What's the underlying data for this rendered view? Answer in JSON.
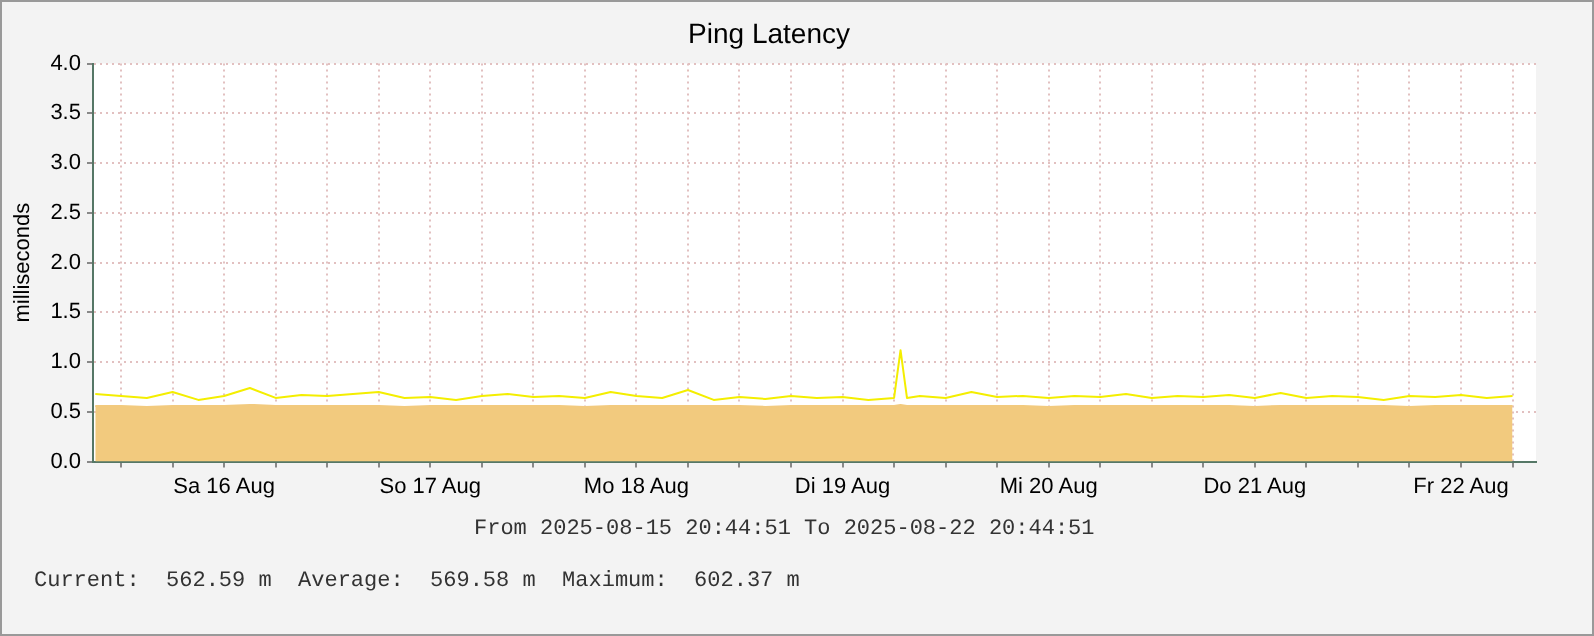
{
  "chart_data": {
    "type": "line",
    "title": "Ping Latency",
    "ylabel": "milliseconds",
    "annotations": [
      "From 2025-08-15 20:44:51 To 2025-08-22 20:44:51",
      "Current:  562.59 m  Average:  569.58 m  Maximum:  602.37 m"
    ],
    "x": [
      "2025-08-15T21:00",
      "2025-08-16T00:00",
      "2025-08-16T03:00",
      "2025-08-16T06:00",
      "2025-08-16T09:00",
      "2025-08-16T12:00",
      "2025-08-16T15:00",
      "2025-08-16T18:00",
      "2025-08-16T21:00",
      "2025-08-17T00:00",
      "2025-08-17T03:00",
      "2025-08-17T06:00",
      "2025-08-17T09:00",
      "2025-08-17T12:00",
      "2025-08-17T15:00",
      "2025-08-17T18:00",
      "2025-08-17T21:00",
      "2025-08-18T00:00",
      "2025-08-18T03:00",
      "2025-08-18T06:00",
      "2025-08-18T09:00",
      "2025-08-18T12:00",
      "2025-08-18T15:00",
      "2025-08-18T18:00",
      "2025-08-18T21:00",
      "2025-08-19T00:00",
      "2025-08-19T03:00",
      "2025-08-19T06:00",
      "2025-08-19T09:00",
      "2025-08-19T12:00",
      "2025-08-19T15:00",
      "2025-08-19T18:00",
      "2025-08-19T18:45",
      "2025-08-19T19:30",
      "2025-08-19T21:00",
      "2025-08-20T00:00",
      "2025-08-20T03:00",
      "2025-08-20T06:00",
      "2025-08-20T09:00",
      "2025-08-20T12:00",
      "2025-08-20T15:00",
      "2025-08-20T18:00",
      "2025-08-20T21:00",
      "2025-08-21T00:00",
      "2025-08-21T03:00",
      "2025-08-21T06:00",
      "2025-08-21T09:00",
      "2025-08-21T12:00",
      "2025-08-21T15:00",
      "2025-08-21T18:00",
      "2025-08-21T21:00",
      "2025-08-22T00:00",
      "2025-08-22T03:00",
      "2025-08-22T06:00",
      "2025-08-22T09:00",
      "2025-08-22T12:00",
      "2025-08-22T15:00",
      "2025-08-22T18:00"
    ],
    "series": [
      {
        "type": "area",
        "color": "#f2ca7e",
        "values": [
          0.56,
          0.56,
          0.55,
          0.56,
          0.56,
          0.56,
          0.57,
          0.56,
          0.56,
          0.56,
          0.56,
          0.56,
          0.55,
          0.56,
          0.56,
          0.56,
          0.56,
          0.56,
          0.56,
          0.55,
          0.56,
          0.56,
          0.56,
          0.56,
          0.56,
          0.56,
          0.55,
          0.56,
          0.56,
          0.56,
          0.56,
          0.56,
          0.57,
          0.56,
          0.56,
          0.56,
          0.56,
          0.56,
          0.56,
          0.55,
          0.56,
          0.56,
          0.56,
          0.56,
          0.56,
          0.56,
          0.56,
          0.55,
          0.56,
          0.56,
          0.56,
          0.56,
          0.56,
          0.55,
          0.56,
          0.56,
          0.56,
          0.56
        ]
      },
      {
        "color": "#f4ee00",
        "values": [
          0.68,
          0.66,
          0.64,
          0.7,
          0.62,
          0.66,
          0.74,
          0.64,
          0.67,
          0.66,
          0.68,
          0.7,
          0.64,
          0.65,
          0.62,
          0.66,
          0.68,
          0.65,
          0.66,
          0.64,
          0.7,
          0.66,
          0.64,
          0.72,
          0.62,
          0.65,
          0.63,
          0.66,
          0.64,
          0.65,
          0.62,
          0.64,
          1.12,
          0.64,
          0.66,
          0.64,
          0.7,
          0.65,
          0.66,
          0.64,
          0.66,
          0.65,
          0.68,
          0.64,
          0.66,
          0.65,
          0.67,
          0.64,
          0.69,
          0.64,
          0.66,
          0.65,
          0.62,
          0.66,
          0.65,
          0.67,
          0.64,
          0.66
        ]
      }
    ],
    "xlim": [
      "2025-08-15T20:44",
      "2025-08-22T20:44"
    ],
    "xticks": [
      {
        "value": "2025-08-16T00:00",
        "label": null
      },
      {
        "value": "2025-08-16T06:00",
        "label": null
      },
      {
        "value": "2025-08-16T12:00",
        "label": "Sa 16 Aug"
      },
      {
        "value": "2025-08-16T18:00",
        "label": null
      },
      {
        "value": "2025-08-17T00:00",
        "label": null
      },
      {
        "value": "2025-08-17T06:00",
        "label": null
      },
      {
        "value": "2025-08-17T12:00",
        "label": "So 17 Aug"
      },
      {
        "value": "2025-08-17T18:00",
        "label": null
      },
      {
        "value": "2025-08-18T00:00",
        "label": null
      },
      {
        "value": "2025-08-18T06:00",
        "label": null
      },
      {
        "value": "2025-08-18T12:00",
        "label": "Mo 18 Aug"
      },
      {
        "value": "2025-08-18T18:00",
        "label": null
      },
      {
        "value": "2025-08-19T00:00",
        "label": null
      },
      {
        "value": "2025-08-19T06:00",
        "label": null
      },
      {
        "value": "2025-08-19T12:00",
        "label": "Di 19 Aug"
      },
      {
        "value": "2025-08-19T18:00",
        "label": null
      },
      {
        "value": "2025-08-20T00:00",
        "label": null
      },
      {
        "value": "2025-08-20T06:00",
        "label": null
      },
      {
        "value": "2025-08-20T12:00",
        "label": "Mi 20 Aug"
      },
      {
        "value": "2025-08-20T18:00",
        "label": null
      },
      {
        "value": "2025-08-21T00:00",
        "label": null
      },
      {
        "value": "2025-08-21T06:00",
        "label": null
      },
      {
        "value": "2025-08-21T12:00",
        "label": "Do 21 Aug"
      },
      {
        "value": "2025-08-21T18:00",
        "label": null
      },
      {
        "value": "2025-08-22T00:00",
        "label": null
      },
      {
        "value": "2025-08-22T06:00",
        "label": null
      },
      {
        "value": "2025-08-22T12:00",
        "label": "Fr 22 Aug"
      },
      {
        "value": "2025-08-22T18:00",
        "label": null
      }
    ],
    "ylim": [
      0,
      4
    ],
    "yticks": [
      {
        "value": 0,
        "label": "0.0"
      },
      {
        "value": 0.5,
        "label": "0.5"
      },
      {
        "value": 1,
        "label": "1.0"
      },
      {
        "value": 1.5,
        "label": "1.5"
      },
      {
        "value": 2,
        "label": "2.0"
      },
      {
        "value": 2.5,
        "label": "2.5"
      },
      {
        "value": 3,
        "label": "3.0"
      },
      {
        "value": 3.5,
        "label": "3.5"
      },
      {
        "value": 4,
        "label": "4.0"
      }
    ],
    "grid": true,
    "marker": "none"
  }
}
